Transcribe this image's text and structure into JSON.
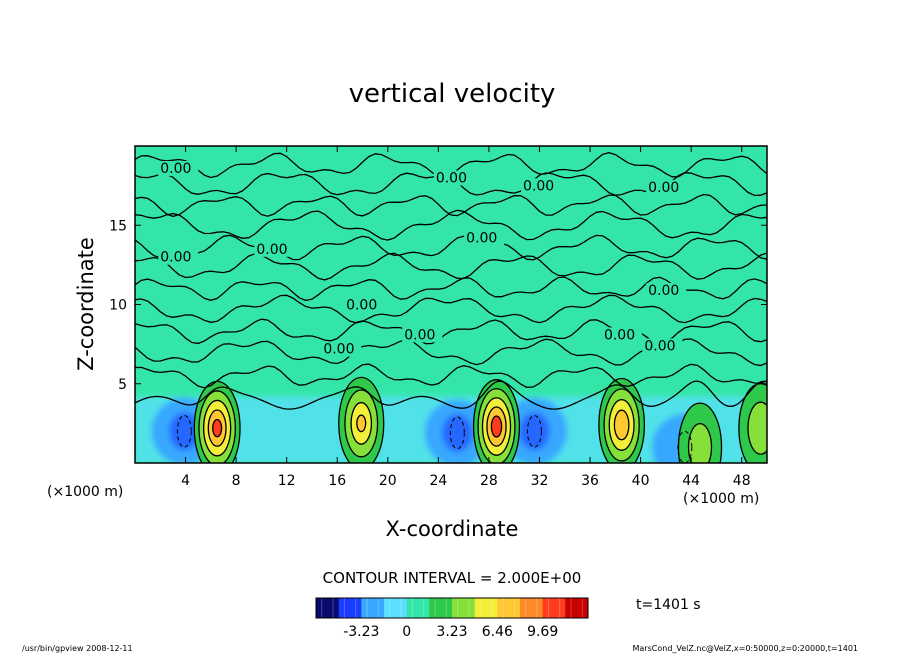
{
  "chart_data": {
    "type": "heatmap",
    "title": "vertical velocity",
    "xlabel": "X-coordinate",
    "ylabel": "Z-coordinate",
    "x_unit": "(×1000 m)",
    "y_unit": "(×1000 m)",
    "xlim": [
      0,
      50
    ],
    "ylim": [
      0,
      20
    ],
    "x_ticks": [
      4,
      8,
      12,
      16,
      20,
      24,
      28,
      32,
      36,
      40,
      44,
      48
    ],
    "y_ticks": [
      5,
      10,
      15
    ],
    "contour_interval_text": "CONTOUR INTERVAL = 2.000E+00",
    "time_text": "t=1401 s",
    "colorbar": {
      "range": [
        -6.46,
        12.92
      ],
      "ticks": [
        -3.23,
        0,
        3.23,
        6.46,
        9.69
      ],
      "colors": [
        "#0a0a6e",
        "#1a3cff",
        "#39a8ff",
        "#5ce0ff",
        "#33e6a8",
        "#2ec84a",
        "#86e03a",
        "#f2ee3a",
        "#ffc832",
        "#ff8a28",
        "#ff3c1e",
        "#c80000"
      ]
    },
    "contour_labels": [
      {
        "text": "0.00",
        "x": 2.0,
        "y": 18.3
      },
      {
        "text": "0.00",
        "x": 23.8,
        "y": 17.7
      },
      {
        "text": "0.00",
        "x": 30.7,
        "y": 17.2
      },
      {
        "text": "0.00",
        "x": 40.6,
        "y": 17.1
      },
      {
        "text": "0.00",
        "x": 2.0,
        "y": 12.7
      },
      {
        "text": "0.00",
        "x": 9.6,
        "y": 13.2
      },
      {
        "text": "0.00",
        "x": 26.2,
        "y": 13.9
      },
      {
        "text": "0.00",
        "x": 40.6,
        "y": 10.6
      },
      {
        "text": "0.00",
        "x": 16.7,
        "y": 9.7
      },
      {
        "text": "0.00",
        "x": 21.3,
        "y": 7.8
      },
      {
        "text": "0.00",
        "x": 14.9,
        "y": 6.9
      },
      {
        "text": "0.00",
        "x": 37.1,
        "y": 7.8
      },
      {
        "text": "0.00",
        "x": 40.3,
        "y": 7.1
      }
    ],
    "updrafts": [
      {
        "x": 6.5,
        "z": 2.2,
        "peak": 9.5
      },
      {
        "x": 17.9,
        "z": 2.5,
        "peak": 7.0
      },
      {
        "x": 28.6,
        "z": 2.3,
        "peak": 10.0
      },
      {
        "x": 38.5,
        "z": 2.4,
        "peak": 8.5
      },
      {
        "x": 44.7,
        "z": 1.0,
        "peak": 4.0
      },
      {
        "x": 49.5,
        "z": 2.2,
        "peak": 4.5
      }
    ],
    "downdrafts": [
      {
        "x": 3.9,
        "z": 2.0,
        "min": -3.5
      },
      {
        "x": 25.5,
        "z": 1.9,
        "min": -3.3
      },
      {
        "x": 31.6,
        "z": 2.0,
        "min": -3.4
      },
      {
        "x": 43.5,
        "z": 1.0,
        "min": -3.0
      }
    ]
  },
  "footer": {
    "left": "/usr/bin/gpview  2008-12-11",
    "right": "MarsCond_VelZ.nc@VelZ,x=0:50000,z=0:20000,t=1401"
  }
}
